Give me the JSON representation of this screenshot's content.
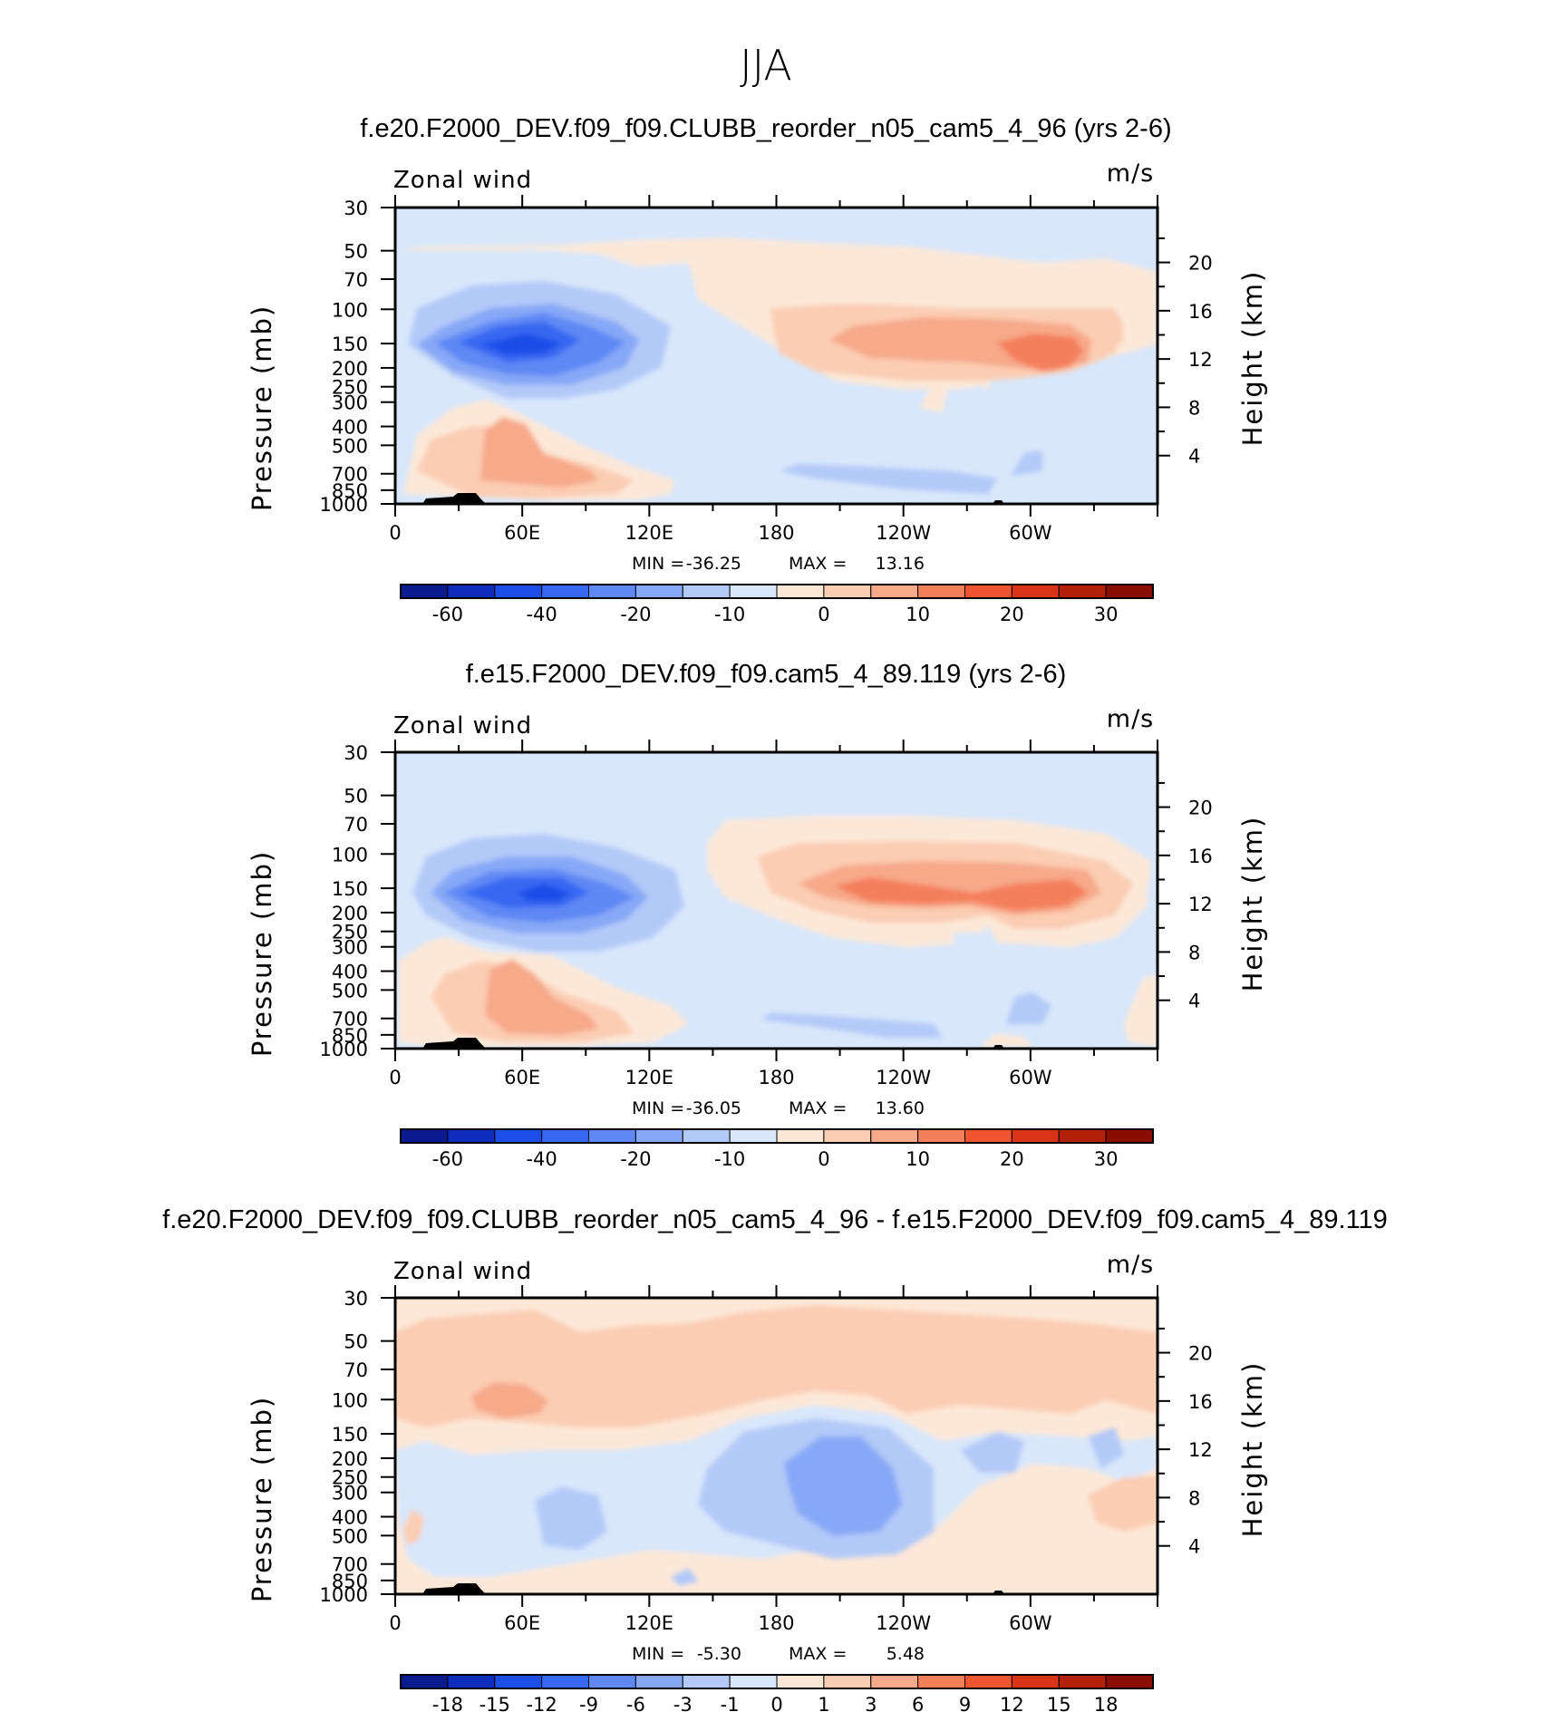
{
  "figure": {
    "title": "JJA"
  },
  "colors": {
    "axis": "#000000",
    "background": "#ffffff"
  },
  "chart_data": [
    {
      "type": "heatmap",
      "title": "f.e20.F2000_DEV.f09_f09.CLUBB_reorder_n05_cam5_4_96 (yrs 2-6)",
      "variable": "Zonal wind",
      "units": "m/s",
      "xlabel": "",
      "ylabel": "Pressure (mb)",
      "ylabel_right": "Height (km)",
      "x_ticks": [
        "0",
        "60E",
        "120E",
        "180",
        "120W",
        "60W"
      ],
      "y_ticks": [
        "30",
        "50",
        "70",
        "100",
        "150",
        "200",
        "250",
        "300",
        "400",
        "500",
        "700",
        "850",
        "1000"
      ],
      "y_right_ticks": [
        "20",
        "16",
        "12",
        "8",
        "4"
      ],
      "min": "-36.25",
      "max": "13.16",
      "min_label": "MIN =",
      "max_label": "MAX =",
      "colorbar_labels": [
        "-60",
        "-40",
        "-20",
        "-10",
        "0",
        "10",
        "20",
        "30"
      ],
      "colorbar_colors": [
        "#0a1a8f",
        "#0f2dbd",
        "#1d4ee8",
        "#3868f2",
        "#5f88f5",
        "#87a8f7",
        "#b3c9f8",
        "#d8e7fb",
        "#fde8d8",
        "#fbcdb3",
        "#f7a98a",
        "#f47f5b",
        "#ef5530",
        "#d93418",
        "#b32008",
        "#8a0e00"
      ]
    },
    {
      "type": "heatmap",
      "title": "f.e15.F2000_DEV.f09_f09.cam5_4_89.119 (yrs 2-6)",
      "variable": "Zonal wind",
      "units": "m/s",
      "xlabel": "",
      "ylabel": "Pressure (mb)",
      "ylabel_right": "Height (km)",
      "x_ticks": [
        "0",
        "60E",
        "120E",
        "180",
        "120W",
        "60W"
      ],
      "y_ticks": [
        "30",
        "50",
        "70",
        "100",
        "150",
        "200",
        "250",
        "300",
        "400",
        "500",
        "700",
        "850",
        "1000"
      ],
      "y_right_ticks": [
        "20",
        "16",
        "12",
        "8",
        "4"
      ],
      "min": "-36.05",
      "max": "13.60",
      "min_label": "MIN =",
      "max_label": "MAX =",
      "colorbar_labels": [
        "-60",
        "-40",
        "-20",
        "-10",
        "0",
        "10",
        "20",
        "30"
      ],
      "colorbar_colors": [
        "#0a1a8f",
        "#0f2dbd",
        "#1d4ee8",
        "#3868f2",
        "#5f88f5",
        "#87a8f7",
        "#b3c9f8",
        "#d8e7fb",
        "#fde8d8",
        "#fbcdb3",
        "#f7a98a",
        "#f47f5b",
        "#ef5530",
        "#d93418",
        "#b32008",
        "#8a0e00"
      ]
    },
    {
      "type": "heatmap",
      "title": "f.e20.F2000_DEV.f09_f09.CLUBB_reorder_n05_cam5_4_96 - f.e15.F2000_DEV.f09_f09.cam5_4_89.119",
      "variable": "Zonal wind",
      "units": "m/s",
      "xlabel": "",
      "ylabel": "Pressure (mb)",
      "ylabel_right": "Height (km)",
      "x_ticks": [
        "0",
        "60E",
        "120E",
        "180",
        "120W",
        "60W"
      ],
      "y_ticks": [
        "30",
        "50",
        "70",
        "100",
        "150",
        "200",
        "250",
        "300",
        "400",
        "500",
        "700",
        "850",
        "1000"
      ],
      "y_right_ticks": [
        "20",
        "16",
        "12",
        "8",
        "4"
      ],
      "min": "-5.30",
      "max": "5.48",
      "min_label": "MIN =",
      "max_label": "MAX =",
      "colorbar_labels": [
        "-18",
        "-15",
        "-12",
        "-9",
        "-6",
        "-3",
        "-1",
        "0",
        "1",
        "3",
        "6",
        "9",
        "12",
        "15",
        "18"
      ],
      "colorbar_colors": [
        "#0a1a8f",
        "#0f2dbd",
        "#1d4ee8",
        "#3868f2",
        "#5f88f5",
        "#87a8f7",
        "#b3c9f8",
        "#d8e7fb",
        "#fde8d8",
        "#fbcdb3",
        "#f7a98a",
        "#f47f5b",
        "#ef5530",
        "#d93418",
        "#b32008",
        "#8a0e00"
      ]
    }
  ]
}
